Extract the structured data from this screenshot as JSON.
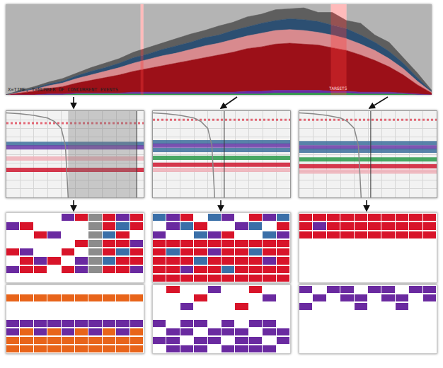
{
  "chart_data": [
    {
      "type": "area",
      "stacked": true,
      "tick_labels": false,
      "grid": false,
      "xlim": [
        0,
        30
      ],
      "ylim": [
        0,
        100
      ],
      "x": [
        0,
        1,
        2,
        3,
        4,
        5,
        6,
        7,
        8,
        9,
        10,
        11,
        12,
        13,
        14,
        15,
        16,
        17,
        18,
        19,
        20,
        21,
        22,
        23,
        24,
        25,
        26,
        27,
        28,
        29,
        30
      ],
      "series": [
        {
          "color": "#2e9a48",
          "values": [
            0,
            0,
            0,
            0,
            0,
            1,
            1,
            1,
            1,
            1,
            1,
            1,
            1,
            1,
            1,
            1,
            1,
            1,
            1,
            2,
            2,
            2,
            2,
            2,
            2,
            1,
            1,
            1,
            1,
            0,
            0
          ]
        },
        {
          "color": "#6a2aa8",
          "values": [
            0,
            0,
            0,
            1,
            1,
            1,
            1,
            1,
            1,
            2,
            2,
            2,
            2,
            2,
            2,
            2,
            2,
            3,
            3,
            3,
            3,
            3,
            3,
            2,
            2,
            2,
            2,
            2,
            1,
            1,
            0
          ]
        },
        {
          "color": "#9c1018",
          "values": [
            0,
            2,
            4,
            6,
            8,
            11,
            14,
            17,
            20,
            23,
            26,
            29,
            32,
            35,
            38,
            41,
            44,
            47,
            49,
            51,
            52,
            51,
            50,
            48,
            45,
            41,
            35,
            28,
            20,
            10,
            2
          ]
        },
        {
          "color": "#d88a8e",
          "values": [
            0,
            1,
            2,
            3,
            4,
            5,
            6,
            7,
            8,
            9,
            10,
            11,
            11,
            12,
            13,
            13,
            14,
            14,
            15,
            15,
            15,
            15,
            14,
            14,
            13,
            12,
            11,
            9,
            7,
            4,
            1
          ]
        },
        {
          "color": "#2c4f72",
          "values": [
            0,
            1,
            1,
            2,
            2,
            3,
            4,
            4,
            5,
            6,
            6,
            7,
            8,
            8,
            9,
            9,
            10,
            10,
            11,
            11,
            12,
            12,
            12,
            11,
            11,
            10,
            9,
            8,
            6,
            4,
            1
          ]
        },
        {
          "color": "#5e5e5e",
          "values": [
            0,
            1,
            2,
            2,
            3,
            3,
            4,
            5,
            5,
            6,
            7,
            7,
            8,
            9,
            8,
            10,
            9,
            11,
            10,
            12,
            11,
            13,
            10,
            14,
            9,
            13,
            8,
            10,
            6,
            5,
            1
          ]
        }
      ],
      "highlights": [
        [
          9.5,
          9.7
        ],
        [
          22.9,
          24.0
        ]
      ],
      "annotations": [
        {
          "text": "X=TIME, Y=NUMBER OF CONCURRENT EVENTS"
        },
        {
          "text": "TARGETS",
          "x": 23.4,
          "y": 3
        }
      ]
    },
    {
      "type": "line",
      "tick_labels": false,
      "grid": true,
      "xlim": [
        0,
        10
      ],
      "ylim": [
        0,
        10
      ],
      "xticks": [
        0,
        1,
        2,
        3,
        4,
        5,
        6,
        7,
        8,
        9,
        10
      ],
      "yticks": [
        0,
        1,
        2,
        3,
        4,
        5,
        6,
        7,
        8,
        9,
        10
      ],
      "x": [
        0,
        2,
        4,
        6,
        8,
        10
      ],
      "highlights": [
        [
          4.5,
          9.5
        ]
      ],
      "cursor": 9.5,
      "series": [
        {
          "color": "#e05060",
          "line_style": "dot",
          "values": [
            8.6,
            8.6,
            8.6,
            8.6,
            8.6,
            8.6
          ]
        },
        {
          "color": "#3d6e9c",
          "values": [
            6.2,
            6.2,
            6.2,
            6.2,
            6.2,
            6.2
          ]
        },
        {
          "color": "#6a3aa8",
          "values": [
            5.8,
            5.8,
            5.8,
            5.8,
            5.8,
            5.8
          ]
        },
        {
          "color": "#f0b0b8",
          "values": [
            4.5,
            4.5,
            4.5,
            4.5,
            4.5,
            4.5
          ]
        },
        {
          "color": "#d01830",
          "values": [
            3.2,
            3.2,
            3.2,
            3.2,
            3.2,
            3.2
          ]
        },
        {
          "color": "#888888",
          "x": [
            0,
            1,
            2,
            3,
            3.5,
            4,
            4.3,
            4.5
          ],
          "values": [
            9.8,
            9.7,
            9.5,
            9.2,
            8.8,
            8,
            6,
            0
          ]
        }
      ]
    },
    {
      "type": "line",
      "tick_labels": false,
      "grid": true,
      "xlim": [
        0,
        10
      ],
      "ylim": [
        0,
        10
      ],
      "xticks": [
        0,
        1,
        2,
        3,
        4,
        5,
        6,
        7,
        8,
        9,
        10
      ],
      "yticks": [
        0,
        1,
        2,
        3,
        4,
        5,
        6,
        7,
        8,
        9,
        10
      ],
      "x": [
        0,
        2,
        4,
        6,
        8,
        10
      ],
      "cursor": 5.2,
      "series": [
        {
          "color": "#e05060",
          "line_style": "dot",
          "values": [
            9,
            9,
            9,
            9,
            9,
            9
          ]
        },
        {
          "color": "#3d6e9c",
          "values": [
            6.4,
            6.4,
            6.4,
            6.4,
            6.4,
            6.4
          ]
        },
        {
          "color": "#6a3aa8",
          "values": [
            6,
            6,
            6,
            6,
            6,
            6
          ]
        },
        {
          "color": "#3d6e9c",
          "values": [
            5.5,
            5.5,
            5.5,
            5.5,
            5.5,
            5.5
          ]
        },
        {
          "color": "#2a9a4a",
          "values": [
            4.6,
            4.6,
            4.6,
            4.6,
            4.6,
            4.6
          ]
        },
        {
          "color": "#d01830",
          "values": [
            3.8,
            3.8,
            3.8,
            3.8,
            3.8,
            3.8
          ]
        },
        {
          "color": "#f0b0b8",
          "values": [
            3.2,
            3.2,
            3.2,
            3.2,
            3.2,
            3.2
          ]
        },
        {
          "color": "#888888",
          "x": [
            0,
            1,
            2,
            3,
            3.5,
            4,
            4.3,
            4.5
          ],
          "values": [
            9.8,
            9.7,
            9.5,
            9.2,
            8.8,
            8,
            6,
            0
          ]
        }
      ]
    },
    {
      "type": "line",
      "tick_labels": false,
      "grid": true,
      "xlim": [
        0,
        10
      ],
      "ylim": [
        0,
        10
      ],
      "xticks": [
        0,
        1,
        2,
        3,
        4,
        5,
        6,
        7,
        8,
        9,
        10
      ],
      "yticks": [
        0,
        1,
        2,
        3,
        4,
        5,
        6,
        7,
        8,
        9,
        10
      ],
      "x": [
        0,
        2,
        4,
        6,
        8,
        10
      ],
      "cursor": 5.2,
      "series": [
        {
          "color": "#e05060",
          "line_style": "dot",
          "values": [
            9,
            9,
            9,
            9,
            9,
            9
          ]
        },
        {
          "color": "#3d6e9c",
          "values": [
            6.3,
            6.3,
            6.3,
            6.3,
            6.3,
            6.3
          ]
        },
        {
          "color": "#6a3aa8",
          "values": [
            5.8,
            5.8,
            5.8,
            5.8,
            5.8,
            5.8
          ]
        },
        {
          "color": "#3d6e9c",
          "values": [
            5.4,
            5.4,
            5.4,
            5.4,
            5.4,
            5.4
          ]
        },
        {
          "color": "#2a9a4a",
          "values": [
            4.4,
            4.4,
            4.4,
            4.4,
            4.4,
            4.4
          ]
        },
        {
          "color": "#d01830",
          "values": [
            3.6,
            3.6,
            3.6,
            3.6,
            3.6,
            3.6
          ]
        },
        {
          "color": "#f0b0b8",
          "values": [
            3,
            3,
            3,
            3,
            3,
            3
          ]
        },
        {
          "color": "#888888",
          "x": [
            0,
            1,
            2,
            3,
            3.5,
            4,
            4.3,
            4.5
          ],
          "values": [
            9.8,
            9.7,
            9.5,
            9.2,
            8.8,
            8,
            6,
            0
          ]
        }
      ]
    },
    {
      "type": "heatmap",
      "tick_labels": false,
      "colors": [
        "#ffffff",
        "#d8142a",
        "#3a6fa8",
        "#6a2aa0",
        "#e8641a",
        "#8c8c8c"
      ],
      "cells": [
        [
          0,
          0,
          0,
          0,
          3,
          1,
          5,
          1,
          3,
          1
        ],
        [
          3,
          1,
          0,
          0,
          0,
          0,
          5,
          1,
          2,
          1
        ],
        [
          0,
          0,
          1,
          3,
          0,
          0,
          5,
          2,
          1,
          0
        ],
        [
          0,
          0,
          0,
          0,
          0,
          1,
          5,
          1,
          1,
          3
        ],
        [
          1,
          3,
          0,
          0,
          1,
          0,
          5,
          1,
          2,
          1
        ],
        [
          0,
          1,
          3,
          1,
          0,
          3,
          5,
          2,
          1,
          1
        ],
        [
          3,
          1,
          1,
          0,
          1,
          3,
          5,
          1,
          1,
          3
        ],
        [
          0,
          0,
          0,
          0,
          0,
          0,
          0,
          0,
          0,
          0
        ]
      ]
    },
    {
      "type": "heatmap",
      "tick_labels": false,
      "colors": [
        "#ffffff",
        "#d8142a",
        "#3a6fa8",
        "#6a2aa0",
        "#e8641a",
        "#8c8c8c"
      ],
      "cells": [
        [
          0,
          0,
          0,
          0,
          0,
          0,
          0,
          0,
          0,
          0
        ],
        [
          4,
          4,
          4,
          4,
          4,
          4,
          4,
          4,
          4,
          4
        ],
        [
          0,
          0,
          0,
          0,
          0,
          0,
          0,
          0,
          0,
          0
        ],
        [
          0,
          0,
          0,
          0,
          0,
          0,
          0,
          0,
          0,
          0
        ],
        [
          3,
          3,
          3,
          3,
          3,
          3,
          3,
          3,
          3,
          3
        ],
        [
          3,
          4,
          3,
          4,
          3,
          4,
          3,
          4,
          3,
          4
        ],
        [
          4,
          4,
          4,
          4,
          4,
          4,
          4,
          4,
          4,
          4
        ],
        [
          4,
          4,
          4,
          4,
          4,
          4,
          4,
          4,
          4,
          4
        ]
      ]
    },
    {
      "type": "heatmap",
      "tick_labels": false,
      "colors": [
        "#ffffff",
        "#d8142a",
        "#3a6fa8",
        "#6a2aa0",
        "#e8641a",
        "#8c8c8c"
      ],
      "cells": [
        [
          2,
          3,
          1,
          0,
          2,
          3,
          0,
          1,
          3,
          2
        ],
        [
          0,
          3,
          2,
          1,
          0,
          0,
          3,
          2,
          0,
          1
        ],
        [
          3,
          0,
          0,
          2,
          3,
          1,
          0,
          0,
          2,
          3
        ],
        [
          1,
          1,
          1,
          1,
          1,
          1,
          1,
          1,
          1,
          1
        ],
        [
          1,
          2,
          1,
          1,
          3,
          1,
          1,
          2,
          1,
          1
        ],
        [
          1,
          1,
          1,
          2,
          1,
          1,
          1,
          1,
          3,
          1
        ],
        [
          1,
          1,
          3,
          1,
          1,
          2,
          1,
          1,
          1,
          1
        ],
        [
          1,
          1,
          1,
          1,
          1,
          1,
          1,
          1,
          1,
          1
        ]
      ]
    },
    {
      "type": "heatmap",
      "tick_labels": false,
      "colors": [
        "#ffffff",
        "#d8142a",
        "#3a6fa8",
        "#6a2aa0",
        "#e8641a",
        "#8c8c8c"
      ],
      "cells": [
        [
          0,
          1,
          0,
          0,
          3,
          0,
          0,
          1,
          0,
          0
        ],
        [
          0,
          0,
          0,
          1,
          0,
          0,
          0,
          0,
          3,
          0
        ],
        [
          0,
          0,
          3,
          0,
          0,
          0,
          1,
          0,
          0,
          0
        ],
        [
          0,
          0,
          0,
          0,
          0,
          0,
          0,
          0,
          0,
          0
        ],
        [
          3,
          0,
          3,
          3,
          0,
          3,
          0,
          3,
          3,
          0
        ],
        [
          0,
          3,
          3,
          0,
          3,
          3,
          3,
          0,
          3,
          3
        ],
        [
          3,
          3,
          0,
          3,
          3,
          0,
          3,
          3,
          0,
          3
        ],
        [
          0,
          3,
          3,
          3,
          0,
          3,
          3,
          3,
          3,
          0
        ]
      ]
    },
    {
      "type": "heatmap",
      "tick_labels": false,
      "colors": [
        "#ffffff",
        "#d8142a",
        "#3a6fa8",
        "#6a2aa0",
        "#e8641a",
        "#8c8c8c"
      ],
      "cells": [
        [
          1,
          1,
          1,
          1,
          1,
          1,
          1,
          1,
          1,
          1
        ],
        [
          1,
          3,
          1,
          1,
          1,
          1,
          1,
          1,
          1,
          1
        ],
        [
          1,
          1,
          1,
          1,
          1,
          1,
          1,
          1,
          1,
          1
        ],
        [
          0,
          0,
          0,
          0,
          0,
          0,
          0,
          0,
          0,
          0
        ],
        [
          0,
          0,
          0,
          0,
          0,
          0,
          0,
          0,
          0,
          0
        ],
        [
          0,
          0,
          0,
          0,
          0,
          0,
          0,
          0,
          0,
          0
        ],
        [
          0,
          0,
          0,
          0,
          0,
          0,
          0,
          0,
          0,
          0
        ],
        [
          0,
          0,
          0,
          0,
          0,
          0,
          0,
          0,
          0,
          0
        ]
      ]
    },
    {
      "type": "heatmap",
      "tick_labels": false,
      "colors": [
        "#ffffff",
        "#d8142a",
        "#3a6fa8",
        "#6a2aa0",
        "#e8641a",
        "#8c8c8c"
      ],
      "cells": [
        [
          3,
          0,
          3,
          3,
          0,
          3,
          3,
          0,
          3,
          3
        ],
        [
          0,
          3,
          0,
          3,
          3,
          0,
          3,
          3,
          0,
          3
        ],
        [
          3,
          0,
          0,
          0,
          3,
          0,
          0,
          3,
          0,
          0
        ],
        [
          0,
          0,
          0,
          0,
          0,
          0,
          0,
          0,
          0,
          0
        ],
        [
          0,
          0,
          0,
          0,
          0,
          0,
          0,
          0,
          0,
          0
        ],
        [
          0,
          0,
          0,
          0,
          0,
          0,
          0,
          0,
          0,
          0
        ],
        [
          0,
          0,
          0,
          0,
          0,
          0,
          0,
          0,
          0,
          0
        ],
        [
          0,
          0,
          0,
          0,
          0,
          0,
          0,
          0,
          0,
          0
        ]
      ]
    }
  ]
}
